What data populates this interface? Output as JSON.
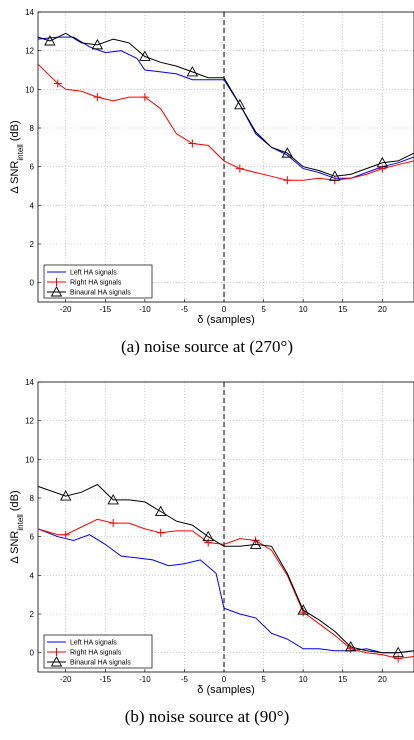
{
  "chart_data": [
    {
      "type": "line",
      "caption": "(a) noise source at (270°)",
      "xlabel": "δ (samples)",
      "ylabel_main": "Δ SNR",
      "ylabel_sub": "intell",
      "ylabel_unit": " (dB)",
      "xlim": [
        -23.5,
        24
      ],
      "ylim": [
        -1,
        14
      ],
      "xticks": [
        -20,
        -15,
        -10,
        -5,
        0,
        5,
        10,
        15,
        20
      ],
      "yticks": [
        0,
        2,
        4,
        6,
        8,
        10,
        12,
        14
      ],
      "grid": true,
      "legend_position": "bottom-left",
      "vline_x": 0,
      "series": [
        {
          "name": "Left HA signals",
          "color": "#0000ff",
          "marker": "none",
          "x": [
            -23.5,
            -21,
            -19,
            -17,
            -15,
            -13,
            -11,
            -10,
            -8,
            -6,
            -4,
            -2,
            0,
            2,
            4,
            6,
            8,
            10,
            12,
            14,
            16,
            18,
            20,
            22,
            24
          ],
          "y": [
            12.6,
            12.7,
            12.7,
            12.2,
            11.9,
            12.0,
            11.6,
            11.0,
            10.9,
            10.8,
            10.5,
            10.5,
            10.5,
            9.2,
            7.7,
            7.0,
            6.6,
            5.9,
            5.7,
            5.4,
            5.4,
            5.7,
            6.0,
            6.2,
            6.5
          ]
        },
        {
          "name": "Right HA signals",
          "color": "#ff0000",
          "marker": "plus",
          "x": [
            -23.5,
            -22,
            -21,
            -20,
            -18,
            -16,
            -14,
            -12,
            -10,
            -8,
            -6,
            -4,
            -2,
            0,
            2,
            4,
            6,
            8,
            10,
            12,
            14,
            16,
            18,
            20,
            22,
            24
          ],
          "y": [
            11.3,
            10.7,
            10.3,
            10.0,
            9.9,
            9.6,
            9.4,
            9.6,
            9.6,
            9.0,
            7.7,
            7.2,
            7.1,
            6.3,
            5.9,
            5.7,
            5.5,
            5.3,
            5.3,
            5.4,
            5.3,
            5.4,
            5.6,
            5.9,
            6.1,
            6.3
          ]
        },
        {
          "name": "Binaural HA signals",
          "color": "#000000",
          "marker": "triangle",
          "x": [
            -23.5,
            -22,
            -20,
            -18,
            -16,
            -14,
            -12,
            -10,
            -8,
            -6,
            -4,
            -2,
            0,
            2,
            4,
            6,
            8,
            10,
            12,
            14,
            16,
            18,
            20,
            22,
            24
          ],
          "y": [
            12.7,
            12.5,
            12.9,
            12.4,
            12.3,
            12.6,
            12.4,
            11.7,
            11.4,
            11.2,
            10.9,
            10.6,
            10.6,
            9.2,
            7.8,
            7.0,
            6.7,
            6.0,
            5.8,
            5.5,
            5.6,
            5.9,
            6.2,
            6.3,
            6.7
          ]
        }
      ],
      "marker_x": {
        "Right HA signals": [
          -21,
          -16,
          -10,
          -4,
          2,
          8,
          14,
          20
        ],
        "Binaural HA signals": [
          -22,
          -16,
          -10,
          -4,
          2,
          8,
          14,
          20
        ]
      }
    },
    {
      "type": "line",
      "caption": "(b) noise source at (90°)",
      "xlabel": "δ (samples)",
      "ylabel_main": "Δ SNR",
      "ylabel_sub": "intell",
      "ylabel_unit": " (dB)",
      "xlim": [
        -23.5,
        24
      ],
      "ylim": [
        -1,
        14
      ],
      "xticks": [
        -20,
        -15,
        -10,
        -5,
        0,
        5,
        10,
        15,
        20
      ],
      "yticks": [
        0,
        2,
        4,
        6,
        8,
        10,
        12,
        14
      ],
      "grid": true,
      "legend_position": "bottom-left",
      "vline_x": 0,
      "series": [
        {
          "name": "Left HA signals",
          "color": "#0000ff",
          "marker": "none",
          "x": [
            -23.5,
            -21,
            -19,
            -17,
            -15,
            -13,
            -11,
            -9,
            -7,
            -5,
            -3,
            -1,
            0,
            2,
            4,
            6,
            8,
            10,
            12,
            14,
            16,
            18,
            20,
            22,
            24
          ],
          "y": [
            6.4,
            6.0,
            5.8,
            6.1,
            5.6,
            5.0,
            4.9,
            4.8,
            4.5,
            4.6,
            4.8,
            4.1,
            2.3,
            2.0,
            1.8,
            1.0,
            0.7,
            0.2,
            0.2,
            0.1,
            0.1,
            0.2,
            0.0,
            0.0,
            0.1
          ]
        },
        {
          "name": "Right HA signals",
          "color": "#ff0000",
          "marker": "plus",
          "x": [
            -23.5,
            -21,
            -20,
            -18,
            -16,
            -14,
            -12,
            -10,
            -8,
            -6,
            -4,
            -2,
            0,
            2,
            4,
            6,
            8,
            10,
            12,
            14,
            16,
            18,
            20,
            22,
            24
          ],
          "y": [
            6.4,
            6.1,
            6.1,
            6.5,
            6.9,
            6.7,
            6.7,
            6.4,
            6.2,
            6.3,
            6.3,
            5.7,
            5.6,
            5.9,
            5.8,
            5.3,
            4.0,
            2.1,
            1.5,
            0.9,
            0.2,
            0.0,
            -0.1,
            -0.3,
            -0.2
          ]
        },
        {
          "name": "Binaural HA signals",
          "color": "#000000",
          "marker": "triangle",
          "x": [
            -23.5,
            -20,
            -18,
            -16,
            -14,
            -12,
            -10,
            -8,
            -6,
            -4,
            -2,
            0,
            2,
            4,
            6,
            8,
            10,
            12,
            14,
            16,
            18,
            20,
            22,
            24
          ],
          "y": [
            8.6,
            8.1,
            8.3,
            8.7,
            7.9,
            7.9,
            7.8,
            7.3,
            6.8,
            6.6,
            6.0,
            5.5,
            5.5,
            5.6,
            5.5,
            4.1,
            2.2,
            1.7,
            1.1,
            0.3,
            0.1,
            0.0,
            0.0,
            0.1
          ]
        }
      ],
      "marker_x": {
        "Right HA signals": [
          -20,
          -14,
          -8,
          -2,
          4,
          10,
          16,
          22
        ],
        "Binaural HA signals": [
          -20,
          -14,
          -8,
          -2,
          4,
          10,
          16,
          22
        ]
      }
    }
  ]
}
